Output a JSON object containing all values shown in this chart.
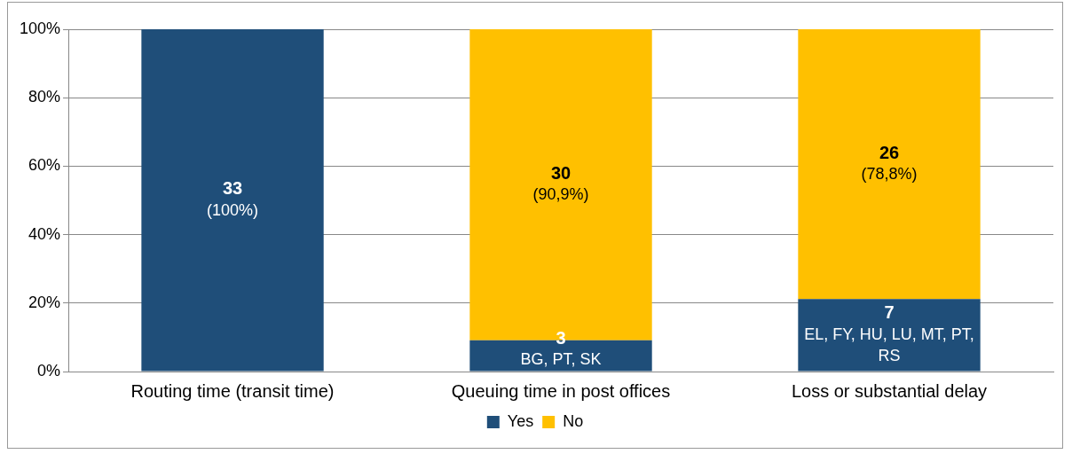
{
  "chart_data": {
    "type": "bar",
    "stacked": true,
    "categories": [
      "Routing time (transit time)",
      "Queuing time in post offices",
      "Loss or substantial delay"
    ],
    "series": [
      {
        "name": "Yes",
        "color": "#1f4e79",
        "values": [
          100,
          9.1,
          21.2
        ]
      },
      {
        "name": "No",
        "color": "#ffc000",
        "values": [
          0,
          90.9,
          78.8
        ]
      }
    ],
    "annotations": [
      "33\n(100%)",
      "3\nBG, PT, SK",
      "7\nEL, FY, HU, LU, MT, PT, RS",
      "30\n(90,9%)",
      "26\n(78,8%)"
    ],
    "ylim": [
      0,
      100
    ],
    "yticks": [
      {
        "value": 0,
        "label": "0%"
      },
      {
        "value": 20,
        "label": "20%"
      },
      {
        "value": 40,
        "label": "40%"
      },
      {
        "value": 60,
        "label": "60%"
      },
      {
        "value": 80,
        "label": "80%"
      },
      {
        "value": 100,
        "label": "100%"
      }
    ],
    "grid": "y",
    "legend": "bottom"
  }
}
